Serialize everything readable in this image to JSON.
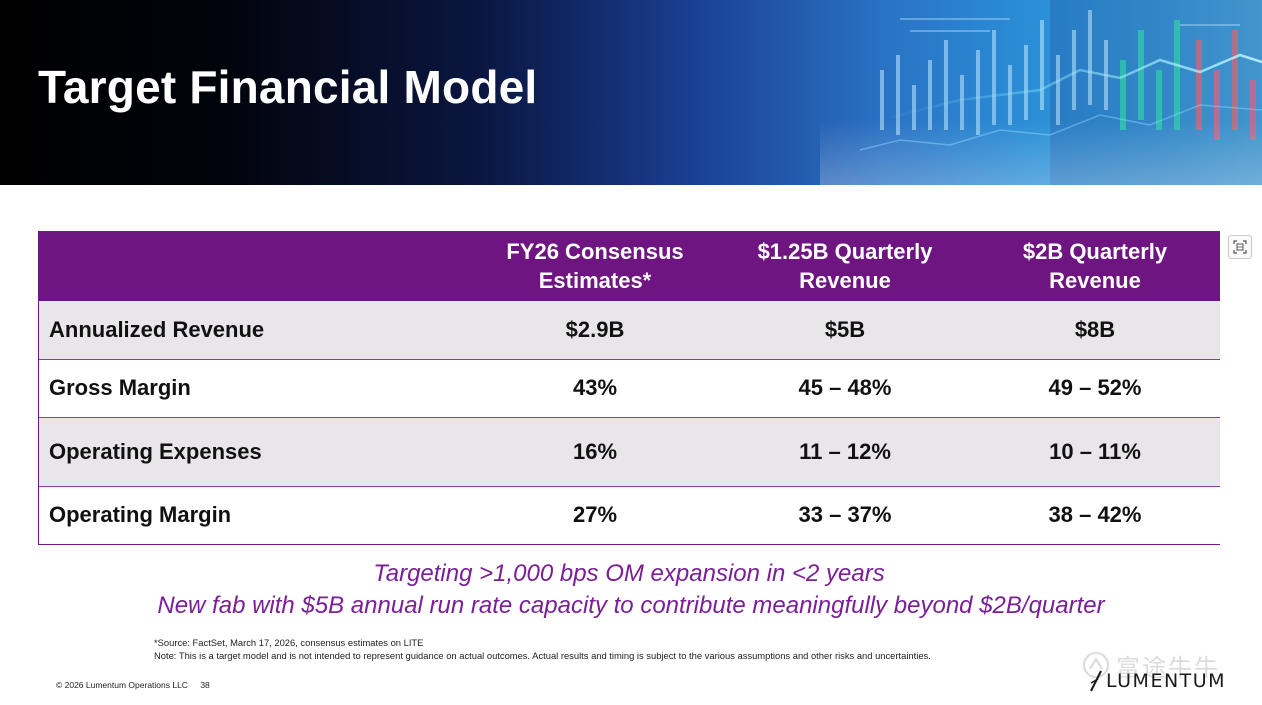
{
  "slide": {
    "title": "Target Financial Model"
  },
  "table": {
    "columns": [
      "",
      "FY26 Consensus Estimates*",
      "$1.25B Quarterly Revenue",
      "$2B Quarterly Revenue"
    ],
    "column_lines": [
      [],
      [
        "FY26 Consensus",
        "Estimates*"
      ],
      [
        "$1.25B Quarterly",
        "Revenue"
      ],
      [
        "$2B Quarterly",
        "Revenue"
      ]
    ],
    "rows": [
      {
        "label": "Annualized Revenue",
        "values": [
          "$2.9B",
          "$5B",
          "$8B"
        ]
      },
      {
        "label": "Gross Margin",
        "values": [
          "43%",
          "45 – 48%",
          "49 – 52%"
        ]
      },
      {
        "label": "Operating Expenses",
        "values": [
          "16%",
          "11 – 12%",
          "10 – 11%"
        ]
      },
      {
        "label": "Operating Margin",
        "values": [
          "27%",
          "33 – 37%",
          "38 – 42%"
        ]
      }
    ]
  },
  "taglines": [
    "Targeting >1,000 bps OM expansion in <2 years",
    "New fab with $5B annual run rate capacity to contribute meaningfully beyond $2B/quarter"
  ],
  "notes": {
    "source": "*Source: FactSet, March 17, 2026, consensus estimates on LITE",
    "disclaimer": "Note: This is a target model and is not intended to represent guidance on actual outcomes. Actual results and timing is subject to the various assumptions and other risks and uncertainties."
  },
  "footer": {
    "copyright": "© 2026 Lumentum Operations LLC",
    "page_number": "38"
  },
  "logo": {
    "text": "LUMENTUM"
  },
  "watermark": {
    "text": "富途牛牛"
  },
  "icons": {
    "expand": "expand-icon",
    "watermark_logo": "futu-logo-icon",
    "brand_mark": "lumentum-slash-icon"
  },
  "colors": {
    "header_purple": "#6e1581",
    "tagline_purple": "#7a1f97",
    "row_shade": "#e9e6ea"
  }
}
